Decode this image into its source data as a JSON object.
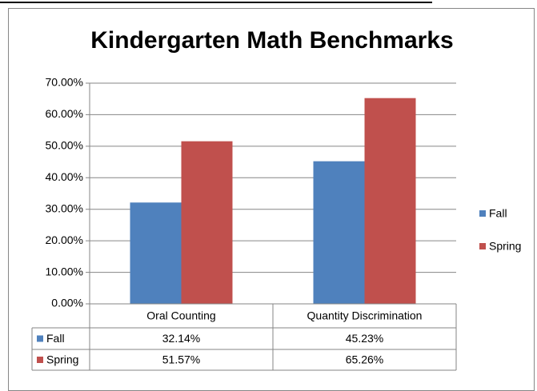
{
  "chart_data": {
    "type": "bar",
    "title": "Kindergarten Math Benchmarks",
    "categories": [
      "Oral Counting",
      "Quantity Discrimination"
    ],
    "series": [
      {
        "name": "Fall",
        "color": "#4f81bd",
        "values": [
          32.14,
          45.23
        ],
        "value_labels": [
          "32.14%",
          "45.23%"
        ]
      },
      {
        "name": "Spring",
        "color": "#c0504d",
        "values": [
          51.57,
          65.26
        ],
        "value_labels": [
          "51.57%",
          "65.26%"
        ]
      }
    ],
    "ylim": [
      0,
      70
    ],
    "yticks": [
      {
        "value": 0,
        "label": "0.00%"
      },
      {
        "value": 10,
        "label": "10.00%"
      },
      {
        "value": 20,
        "label": "20.00%"
      },
      {
        "value": 30,
        "label": "30.00%"
      },
      {
        "value": 40,
        "label": "40.00%"
      },
      {
        "value": 50,
        "label": "50.00%"
      },
      {
        "value": 60,
        "label": "60.00%"
      },
      {
        "value": 70,
        "label": "70.00%"
      }
    ],
    "grid": true,
    "legend": "right",
    "data_table": true
  }
}
